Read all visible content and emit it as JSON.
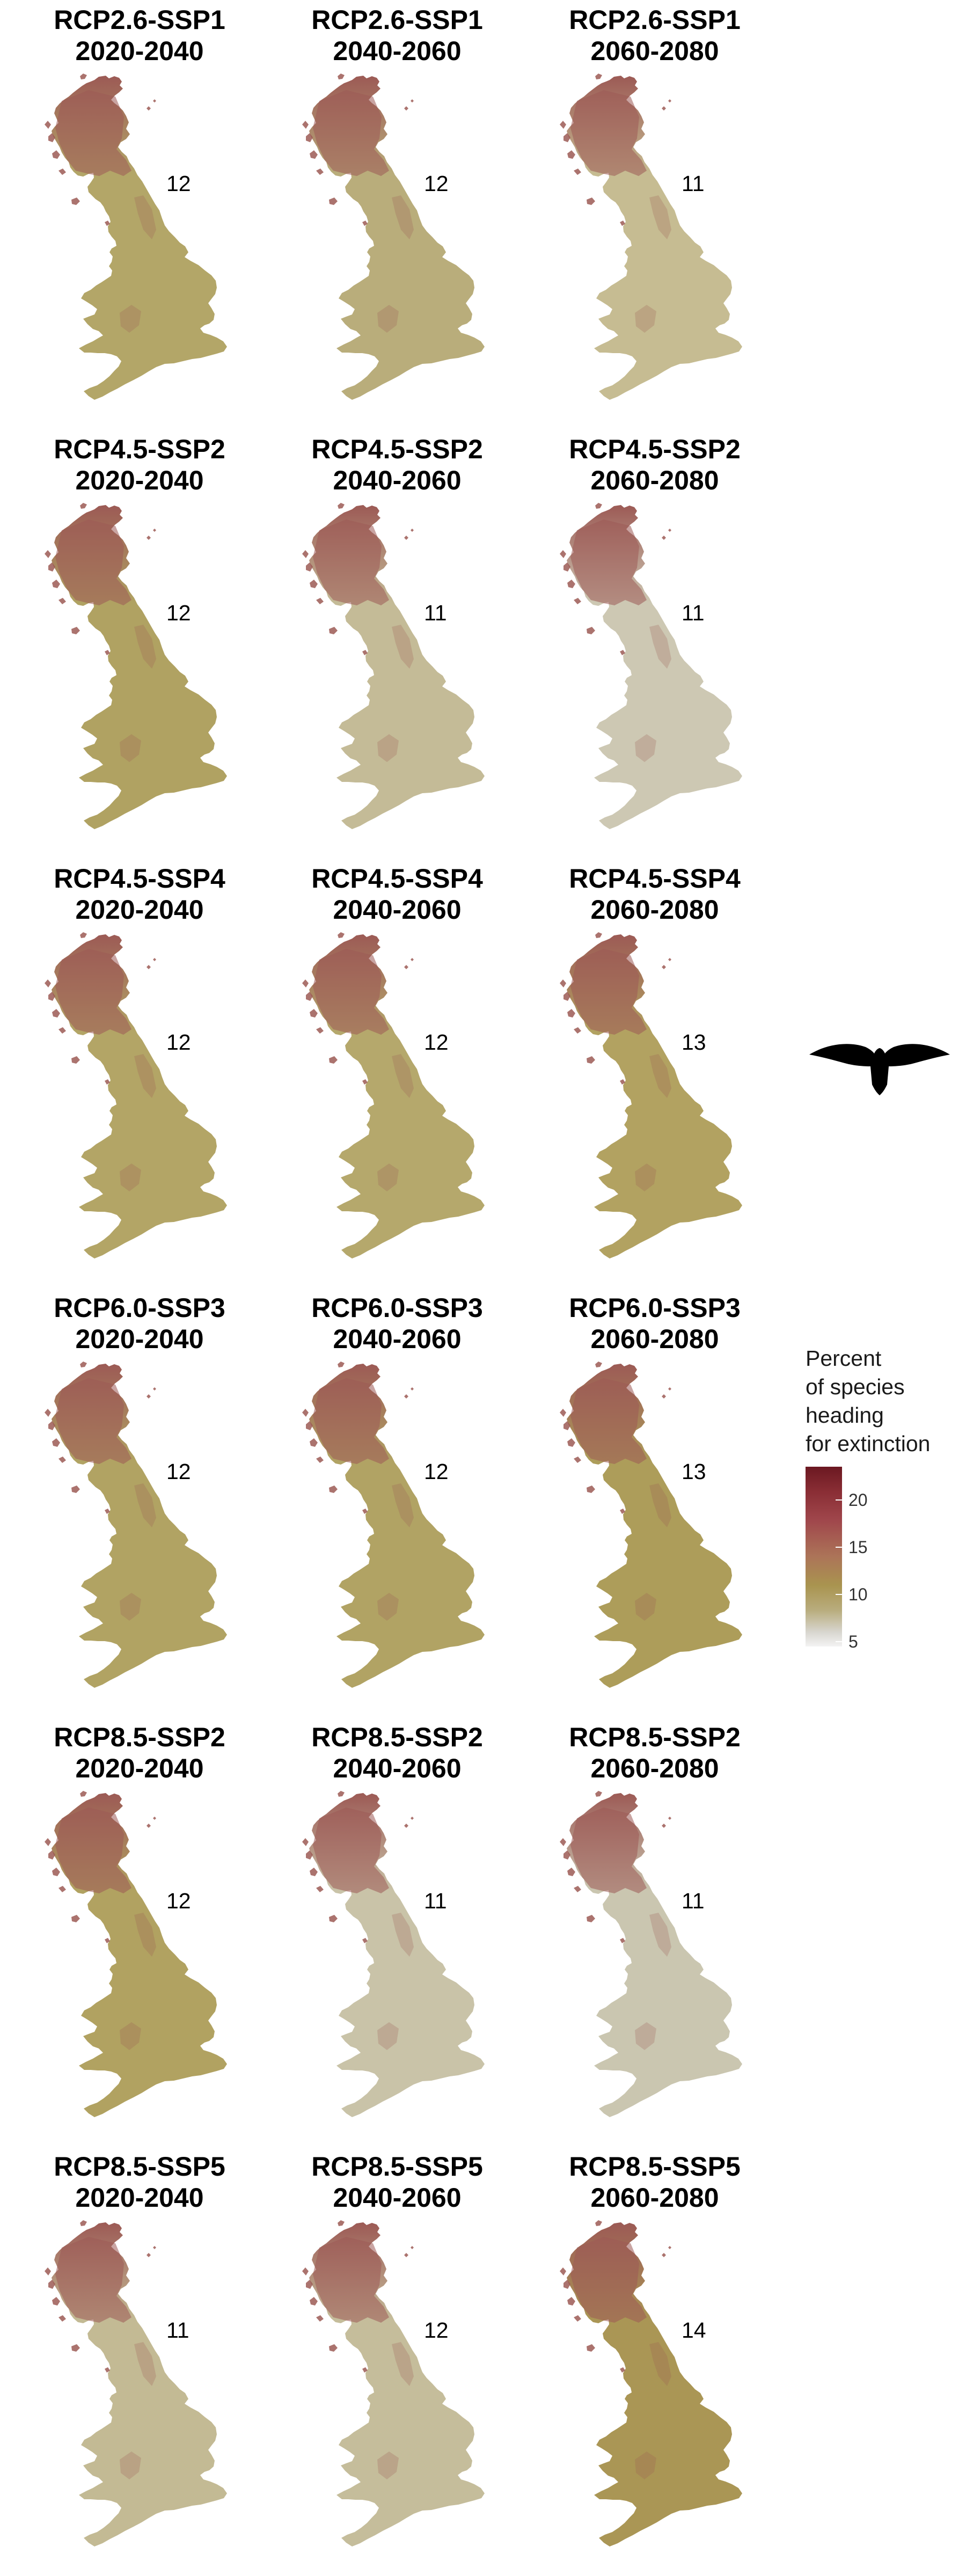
{
  "panels": [
    {
      "title": "RCP2.6-SSP1\n2020-2040",
      "value": "12",
      "tone": "#b3a668"
    },
    {
      "title": "RCP2.6-SSP1\n2040-2060",
      "value": "12",
      "tone": "#b9ad7b"
    },
    {
      "title": "RCP2.6-SSP1\n2060-2080",
      "value": "11",
      "tone": "#c6bc92"
    },
    {
      "title": "RCP4.5-SSP2\n2020-2040",
      "value": "12",
      "tone": "#b0a262"
    },
    {
      "title": "RCP4.5-SSP2\n2040-2060",
      "value": "11",
      "tone": "#c4bb97"
    },
    {
      "title": "RCP4.5-SSP2\n2060-2080",
      "value": "11",
      "tone": "#cdc8b3"
    },
    {
      "title": "RCP4.5-SSP4\n2020-2040",
      "value": "12",
      "tone": "#b3a566"
    },
    {
      "title": "RCP4.5-SSP4\n2040-2060",
      "value": "12",
      "tone": "#b5a86c"
    },
    {
      "title": "RCP4.5-SSP4\n2060-2080",
      "value": "13",
      "tone": "#b2a261"
    },
    {
      "title": "RCP6.0-SSP3\n2020-2040",
      "value": "12",
      "tone": "#b1a363"
    },
    {
      "title": "RCP6.0-SSP3\n2040-2060",
      "value": "12",
      "tone": "#b1a364"
    },
    {
      "title": "RCP6.0-SSP3\n2060-2080",
      "value": "13",
      "tone": "#ad9d5a"
    },
    {
      "title": "RCP8.5-SSP2\n2020-2040",
      "value": "12",
      "tone": "#b1a261"
    },
    {
      "title": "RCP8.5-SSP2\n2040-2060",
      "value": "11",
      "tone": "#c9c3a8"
    },
    {
      "title": "RCP8.5-SSP2\n2060-2080",
      "value": "11",
      "tone": "#cac6b0"
    },
    {
      "title": "RCP8.5-SSP5\n2020-2040",
      "value": "11",
      "tone": "#c3ba94"
    },
    {
      "title": "RCP8.5-SSP5\n2040-2060",
      "value": "12",
      "tone": "#c5bd9b"
    },
    {
      "title": "RCP8.5-SSP5\n2060-2080",
      "value": "14",
      "tone": "#aa9655"
    }
  ],
  "legend": {
    "title": "Percent\nof species\nheading\nfor extinction",
    "ticks": [
      {
        "label": "20",
        "value": 20
      },
      {
        "label": "15",
        "value": 15
      },
      {
        "label": "10",
        "value": 10
      },
      {
        "label": "5",
        "value": 5
      }
    ],
    "range": [
      4.5,
      23.5
    ]
  },
  "colors": {
    "scale_high": "#6b1821",
    "scale_mid": "#a9944f",
    "scale_low": "#f3f3f3",
    "highlands": "#9c5a55",
    "silhouette": "#000000"
  },
  "icon": "bird-silhouette-icon"
}
